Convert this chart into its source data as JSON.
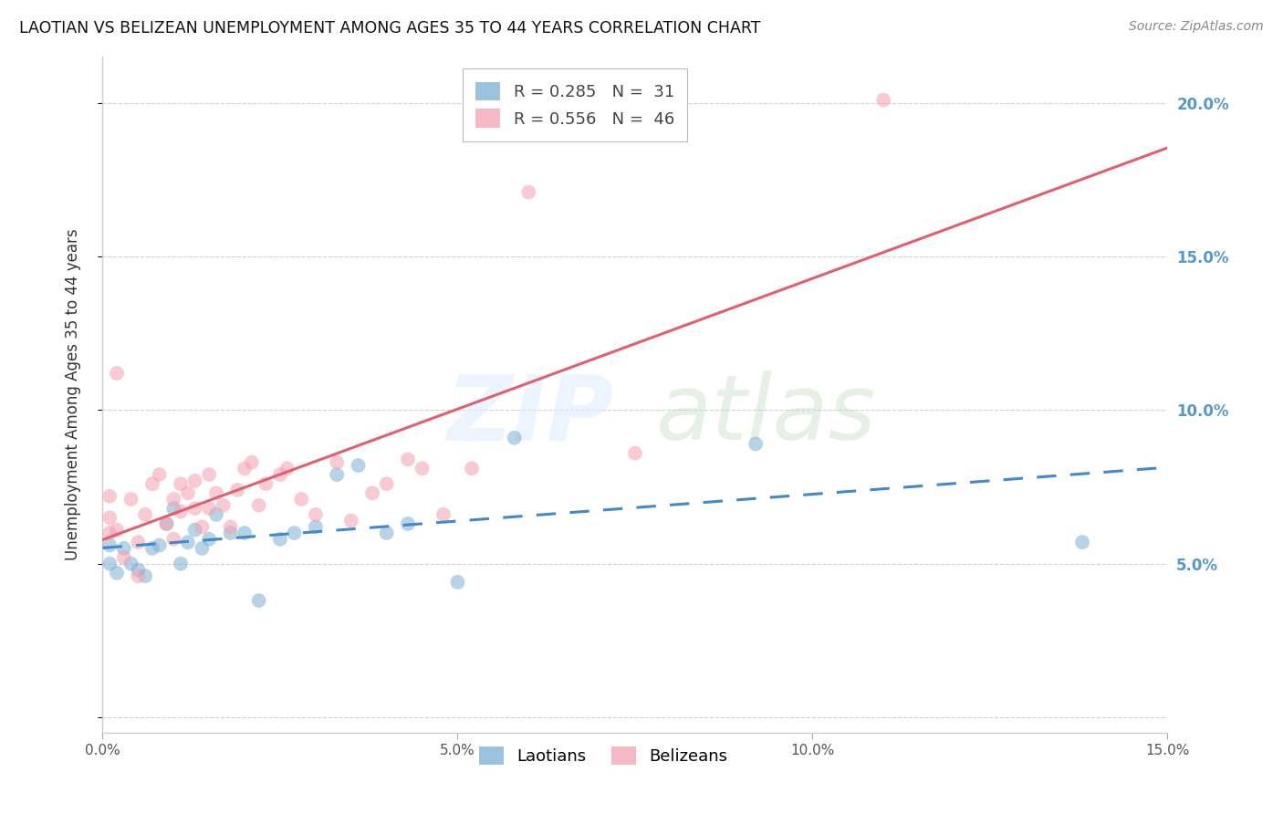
{
  "title": "LAOTIAN VS BELIZEAN UNEMPLOYMENT AMONG AGES 35 TO 44 YEARS CORRELATION CHART",
  "source": "Source: ZipAtlas.com",
  "ylabel": "Unemployment Among Ages 35 to 44 years",
  "xlim": [
    0.0,
    0.15
  ],
  "ylim": [
    -0.005,
    0.215
  ],
  "background_color": "#ffffff",
  "grid_color": "#cccccc",
  "legend_R_laotian": "0.285",
  "legend_N_laotian": "31",
  "legend_R_belizean": "0.556",
  "legend_N_belizean": "46",
  "laotian_color": "#7bafd4",
  "belizean_color": "#f4a0b0",
  "laotian_line_color": "#4488cc",
  "belizean_line_color": "#e06070",
  "laotian_x": [
    0.001,
    0.001,
    0.002,
    0.003,
    0.004,
    0.005,
    0.006,
    0.007,
    0.008,
    0.009,
    0.01,
    0.011,
    0.012,
    0.013,
    0.014,
    0.015,
    0.016,
    0.018,
    0.02,
    0.022,
    0.025,
    0.027,
    0.03,
    0.033,
    0.036,
    0.04,
    0.043,
    0.05,
    0.058,
    0.092,
    0.138
  ],
  "laotian_y": [
    0.05,
    0.056,
    0.047,
    0.055,
    0.05,
    0.048,
    0.046,
    0.055,
    0.056,
    0.063,
    0.068,
    0.05,
    0.057,
    0.061,
    0.055,
    0.058,
    0.066,
    0.06,
    0.06,
    0.038,
    0.058,
    0.06,
    0.062,
    0.079,
    0.082,
    0.06,
    0.063,
    0.044,
    0.091,
    0.089,
    0.057
  ],
  "belizean_x": [
    0.001,
    0.001,
    0.001,
    0.002,
    0.003,
    0.004,
    0.005,
    0.005,
    0.006,
    0.007,
    0.008,
    0.009,
    0.01,
    0.01,
    0.011,
    0.011,
    0.012,
    0.013,
    0.013,
    0.014,
    0.015,
    0.015,
    0.016,
    0.017,
    0.018,
    0.019,
    0.02,
    0.021,
    0.022,
    0.023,
    0.025,
    0.026,
    0.028,
    0.03,
    0.033,
    0.035,
    0.038,
    0.04,
    0.043,
    0.045,
    0.048,
    0.052,
    0.06,
    0.075,
    0.11,
    0.002
  ],
  "belizean_y": [
    0.06,
    0.065,
    0.072,
    0.061,
    0.052,
    0.071,
    0.046,
    0.057,
    0.066,
    0.076,
    0.079,
    0.063,
    0.058,
    0.071,
    0.067,
    0.076,
    0.073,
    0.068,
    0.077,
    0.062,
    0.068,
    0.079,
    0.073,
    0.069,
    0.062,
    0.074,
    0.081,
    0.083,
    0.069,
    0.076,
    0.079,
    0.081,
    0.071,
    0.066,
    0.083,
    0.064,
    0.073,
    0.076,
    0.084,
    0.081,
    0.066,
    0.081,
    0.171,
    0.086,
    0.201,
    0.112
  ]
}
